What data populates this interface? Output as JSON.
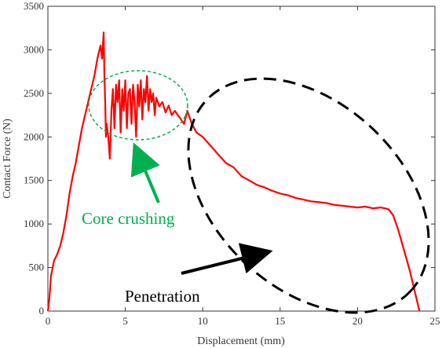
{
  "chart_data": {
    "type": "line",
    "title": "",
    "xlabel": "Displacement (mm)",
    "ylabel": "Contact Force (N)",
    "xlim": [
      0,
      25
    ],
    "ylim": [
      0,
      3500
    ],
    "xticks": [
      0,
      5,
      10,
      15,
      20,
      25
    ],
    "yticks": [
      0,
      500,
      1000,
      1500,
      2000,
      2500,
      3000,
      3500
    ],
    "xtick_labels": [
      "0",
      "5",
      "10",
      "15",
      "20",
      "25"
    ],
    "ytick_labels": [
      "0",
      "500",
      "1000",
      "1500",
      "2000",
      "2500",
      "3000",
      "3500"
    ],
    "grid": false,
    "series": [
      {
        "color": "#ff0000",
        "x": [
          0,
          0.1,
          0.2,
          0.4,
          0.6,
          0.8,
          1.0,
          1.2,
          1.4,
          1.6,
          1.8,
          2.0,
          2.2,
          2.4,
          2.6,
          2.8,
          3.0,
          3.2,
          3.4,
          3.5,
          3.6,
          3.65,
          3.7,
          3.75,
          3.8,
          3.9,
          4.0,
          4.05,
          4.1,
          4.2,
          4.3,
          4.4,
          4.5,
          4.6,
          4.7,
          4.8,
          4.9,
          5.0,
          5.1,
          5.2,
          5.3,
          5.4,
          5.5,
          5.6,
          5.7,
          5.8,
          5.9,
          6.0,
          6.1,
          6.2,
          6.3,
          6.4,
          6.5,
          6.6,
          6.7,
          6.8,
          6.9,
          7.0,
          7.2,
          7.4,
          7.6,
          7.8,
          8.0,
          8.2,
          8.4,
          8.6,
          8.8,
          9.0,
          9.3,
          9.6,
          10.0,
          10.5,
          11.0,
          11.5,
          12.0,
          12.5,
          13.0,
          13.5,
          14.0,
          14.5,
          15.0,
          15.5,
          16.0,
          16.5,
          17.0,
          17.5,
          18.0,
          18.5,
          19.0,
          19.5,
          20.0,
          20.5,
          21.0,
          21.5,
          22.0,
          22.3,
          22.6,
          23.0,
          23.4,
          23.8,
          24.0
        ],
        "y": [
          0,
          150,
          400,
          580,
          650,
          750,
          900,
          1100,
          1350,
          1550,
          1700,
          1900,
          2100,
          2250,
          2400,
          2550,
          2700,
          2900,
          3050,
          2900,
          3200,
          2700,
          2400,
          2000,
          2150,
          2000,
          1750,
          2000,
          2300,
          2550,
          2100,
          2600,
          2400,
          2650,
          2050,
          2550,
          2300,
          2650,
          2100,
          2500,
          2550,
          2150,
          2600,
          2400,
          2000,
          2600,
          2350,
          2650,
          2200,
          2550,
          2400,
          2700,
          2300,
          2550,
          2400,
          2500,
          2250,
          2450,
          2350,
          2400,
          2280,
          2360,
          2250,
          2300,
          2250,
          2200,
          2150,
          2300,
          2150,
          2050,
          2000,
          1900,
          1800,
          1700,
          1650,
          1550,
          1500,
          1450,
          1420,
          1380,
          1350,
          1330,
          1300,
          1280,
          1260,
          1250,
          1240,
          1220,
          1210,
          1200,
          1190,
          1200,
          1180,
          1190,
          1170,
          1100,
          950,
          700,
          450,
          150,
          0
        ]
      }
    ],
    "annotations": [
      {
        "text": "Core crushing",
        "color": "#00b050",
        "target": [
          5.5,
          1850
        ]
      },
      {
        "text": "Penetration",
        "color": "#000000",
        "target": [
          14.0,
          650
        ]
      }
    ]
  }
}
